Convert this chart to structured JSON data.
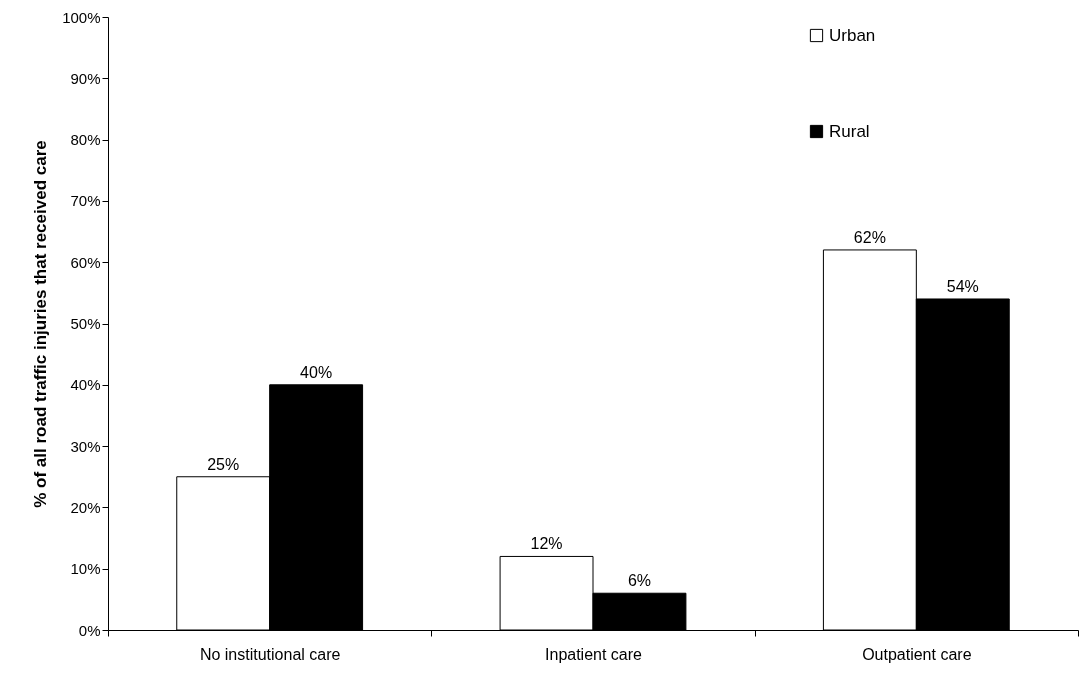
{
  "chart_data": {
    "type": "bar",
    "ylabel": "% of all road traffic injuries that received care",
    "categories": [
      "No institutional care",
      "Inpatient care",
      "Outpatient care"
    ],
    "series": [
      {
        "name": "Urban",
        "color": "#ffffff",
        "values": [
          25,
          12,
          62
        ],
        "value_labels": [
          "25%",
          "12%",
          "62%"
        ]
      },
      {
        "name": "Rural",
        "color": "#000000",
        "values": [
          40,
          6,
          54
        ],
        "value_labels": [
          "40%",
          "6%",
          "54%"
        ]
      }
    ],
    "ylim": [
      0,
      100
    ],
    "yticks": [
      {
        "value": 0,
        "label": "0%"
      },
      {
        "value": 10,
        "label": "10%"
      },
      {
        "value": 20,
        "label": "20%"
      },
      {
        "value": 30,
        "label": "30%"
      },
      {
        "value": 40,
        "label": "40%"
      },
      {
        "value": 50,
        "label": "50%"
      },
      {
        "value": 60,
        "label": "60%"
      },
      {
        "value": 70,
        "label": "70%"
      },
      {
        "value": 80,
        "label": "80%"
      },
      {
        "value": 90,
        "label": "90%"
      },
      {
        "value": 100,
        "label": "100%"
      }
    ],
    "legend": "top right"
  }
}
